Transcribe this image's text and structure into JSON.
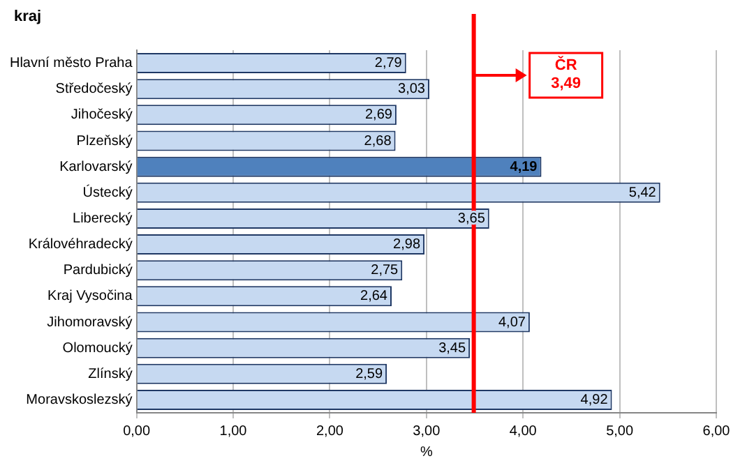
{
  "chart_data": {
    "type": "bar",
    "orientation": "horizontal",
    "ylabel": "kraj",
    "xlabel": "%",
    "categories": [
      "Hlavní město Praha",
      "Středočeský",
      "Jihočeský",
      "Plzeňský",
      "Karlovarský",
      "Ústecký",
      "Liberecký",
      "Královéhradecký",
      "Pardubický",
      "Kraj Vysočina",
      "Jihomoravský",
      "Olomoucký",
      "Zlínský",
      "Moravskoslezský"
    ],
    "values": [
      2.79,
      3.03,
      2.69,
      2.68,
      4.19,
      5.42,
      3.65,
      2.98,
      2.75,
      2.64,
      4.07,
      3.45,
      2.59,
      4.92
    ],
    "value_labels": [
      "2,79",
      "3,03",
      "2,69",
      "2,68",
      "4,19",
      "5,42",
      "3,65",
      "2,98",
      "2,75",
      "2,64",
      "4,07",
      "3,45",
      "2,59",
      "4,92"
    ],
    "colors": [
      "#c6d9f1",
      "#c6d9f1",
      "#c6d9f1",
      "#c6d9f1",
      "#4f81bd",
      "#c6d9f1",
      "#c6d9f1",
      "#c6d9f1",
      "#c6d9f1",
      "#c6d9f1",
      "#c6d9f1",
      "#c6d9f1",
      "#c6d9f1",
      "#c6d9f1"
    ],
    "xlim": [
      0,
      6
    ],
    "xticks": [
      {
        "value": 0,
        "label": "0,00"
      },
      {
        "value": 1,
        "label": "1,00"
      },
      {
        "value": 2,
        "label": "2,00"
      },
      {
        "value": 3,
        "label": "3,00"
      },
      {
        "value": 4,
        "label": "4,00"
      },
      {
        "value": 5,
        "label": "5,00"
      },
      {
        "value": 6,
        "label": "6,00"
      }
    ],
    "grid": "x",
    "legend": false,
    "ref_lines": [
      {
        "axis": "x",
        "value": 3.49,
        "label": "ČR 3,49",
        "color": "#ff0000"
      }
    ]
  }
}
